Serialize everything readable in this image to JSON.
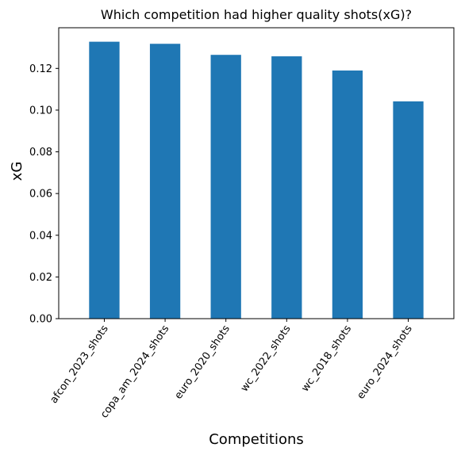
{
  "chart_data": {
    "type": "bar",
    "title": "Which competition had higher quality shots(xG)?",
    "xlabel": "Competitions",
    "ylabel": "xG",
    "categories": [
      "afcon_2023_shots",
      "copa_am_2024_shots",
      "euro_2020_shots",
      "wc_2022_shots",
      "wc_2018_shots",
      "euro_2024_shots"
    ],
    "values": [
      0.1328,
      0.1318,
      0.1265,
      0.1258,
      0.119,
      0.1042
    ],
    "ylim": [
      0,
      0.1395
    ],
    "yticks": [
      "0.00",
      "0.02",
      "0.04",
      "0.06",
      "0.08",
      "0.10",
      "0.12"
    ],
    "bar_color": "#1f77b4",
    "grid": false,
    "legend": "none"
  }
}
